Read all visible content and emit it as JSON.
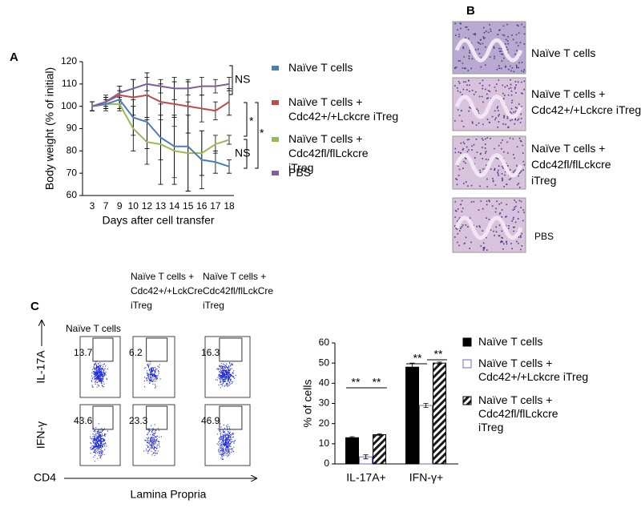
{
  "panels": {
    "a": "A",
    "b": "B",
    "c": "C"
  },
  "chart_data": [
    {
      "type": "line",
      "ylabel": "Body weight (% of initial)",
      "xlabel": "Days after cell transfer",
      "categories": [
        "3",
        "7",
        "9",
        "10",
        "12",
        "13",
        "14",
        "15",
        "16",
        "17",
        "18"
      ],
      "ylim": [
        60,
        120
      ],
      "yticks": [
        60,
        70,
        80,
        90,
        100,
        110,
        120
      ],
      "series": [
        {
          "name": "Naïve T cells + Cdc42+/+Lckcre iTreg",
          "color": "#be4b48",
          "values": [
            100,
            102,
            105,
            104,
            105,
            102,
            101,
            100,
            99,
            98,
            102
          ],
          "errors": [
            2,
            3,
            4,
            8,
            10,
            8,
            10,
            12,
            6,
            4,
            6
          ]
        },
        {
          "name": "Naïve T cells + Cdc42fl/flLckcre iTreg",
          "color": "#98b954",
          "values": [
            100,
            101,
            101,
            90,
            84,
            83,
            80,
            79,
            79,
            83,
            85
          ],
          "errors": [
            2,
            2,
            3,
            10,
            10,
            18,
            15,
            17,
            10,
            4,
            2
          ]
        },
        {
          "name": "Naïve T cells",
          "color": "#4a7ebb",
          "values": [
            100,
            101,
            103,
            95,
            93,
            86,
            82,
            82,
            76,
            75,
            73
          ],
          "errors": [
            2,
            3,
            4,
            8,
            12,
            10,
            14,
            20,
            13,
            5,
            3
          ]
        },
        {
          "name": "PBS",
          "color": "#7d60a0",
          "values": [
            100,
            102,
            106,
            108,
            110,
            109,
            108,
            108,
            109,
            109,
            110
          ],
          "errors": [
            2,
            2,
            3,
            4,
            3,
            3,
            5,
            3,
            4,
            3,
            3
          ]
        }
      ],
      "legend_order": [
        2,
        0,
        1,
        3
      ],
      "annotations": [
        "NS",
        "*",
        "*",
        "NS"
      ]
    },
    {
      "type": "bar",
      "ylabel": "% of cells",
      "categories": [
        "IL-17A+",
        "IFN-γ+"
      ],
      "ylim": [
        0,
        60
      ],
      "yticks": [
        0,
        10,
        20,
        30,
        40,
        50,
        60
      ],
      "series": [
        {
          "name": "Naïve T cells",
          "color": "#000000",
          "edge": "#000000",
          "hatch": false,
          "values": [
            13,
            48
          ],
          "errors": [
            0.5,
            2
          ]
        },
        {
          "name": "Naïve T cells + Cdc42+/+Lckcre iTreg",
          "color": "#ffffff",
          "edge": "#7b68b0",
          "hatch": false,
          "values": [
            3.5,
            29
          ],
          "errors": [
            1,
            1
          ]
        },
        {
          "name": "Naïve T cells + Cdc42fl/flLckcre iTreg",
          "color": "#ffffff",
          "edge": "#000000",
          "hatch": true,
          "values": [
            14.5,
            50
          ],
          "errors": [
            0.5,
            0.5
          ]
        }
      ],
      "annotations": [
        "**",
        "**",
        "**",
        "**"
      ]
    }
  ],
  "histology": {
    "labels": [
      "Naïve T cells",
      "Naïve T cells + Cdc42+/+Lckcre iTreg",
      "Naïve T cells + Cdc42fl/flLckcre iTreg",
      "PBS"
    ]
  },
  "flow": {
    "columns": [
      "Naïve T cells",
      "Naïve T cells + Cdc42+/+LckCre iTreg",
      "Naïve T cells + Cdc42fl/flLckCre iTreg"
    ],
    "rows": [
      "IL-17A",
      "IFN-γ"
    ],
    "percentages": [
      [
        13.7,
        6.2,
        16.3
      ],
      [
        43.6,
        23.3,
        46.9
      ]
    ],
    "x_axis": "CD4",
    "tissue": "Lamina Propria"
  }
}
